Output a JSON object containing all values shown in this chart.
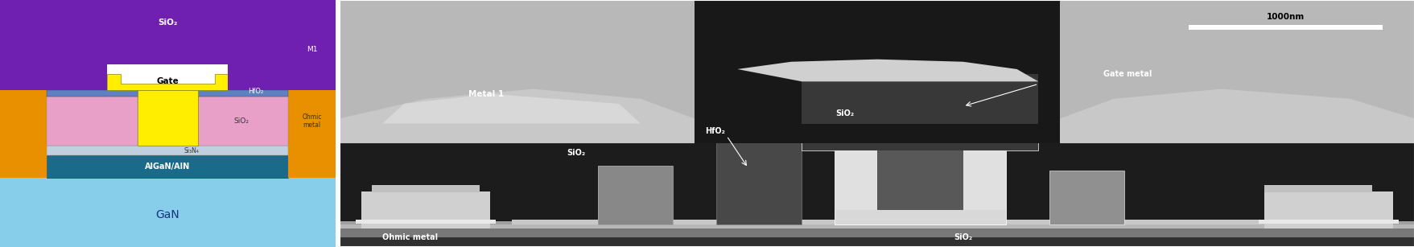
{
  "fig_width": 17.58,
  "fig_height": 3.07,
  "dpi": 100,
  "left_panel": {
    "gan_color": "#87CEEB",
    "algan_color": "#1A6B8A",
    "si3n4_color": "#C0D0E0",
    "sio2_pink_color": "#E8A0C8",
    "hfo2_color": "#6080C0",
    "gate_color": "#FFEE00",
    "purple_color": "#7020B0",
    "ohmic_color": "#E89000",
    "teal_color": "#60C8C8",
    "white": "#FFFFFF",
    "black": "#000000",
    "dark_blue": "#0A3060",
    "labels": {
      "sio2_top": "SiO₂",
      "gate": "Gate",
      "hfo2": "HfO₂",
      "sio2_mid": "SiO₂",
      "si3n4": "Si₃N₄",
      "algan": "AlGaN/AlN",
      "gan": "GaN",
      "ohmic": "Ohmic\nmetal",
      "m1": "M1"
    }
  },
  "right_panel": {
    "labels": {
      "metal1": "Metal 1",
      "sio2_left": "SiO₂",
      "hfo2": "HfO₂",
      "sio2_mid": "SiO₂",
      "gate_metal": "Gate metal",
      "ohmic": "Ohmic metal",
      "sio2_bot": "SiO₂",
      "scalebar": "1000nm"
    }
  }
}
